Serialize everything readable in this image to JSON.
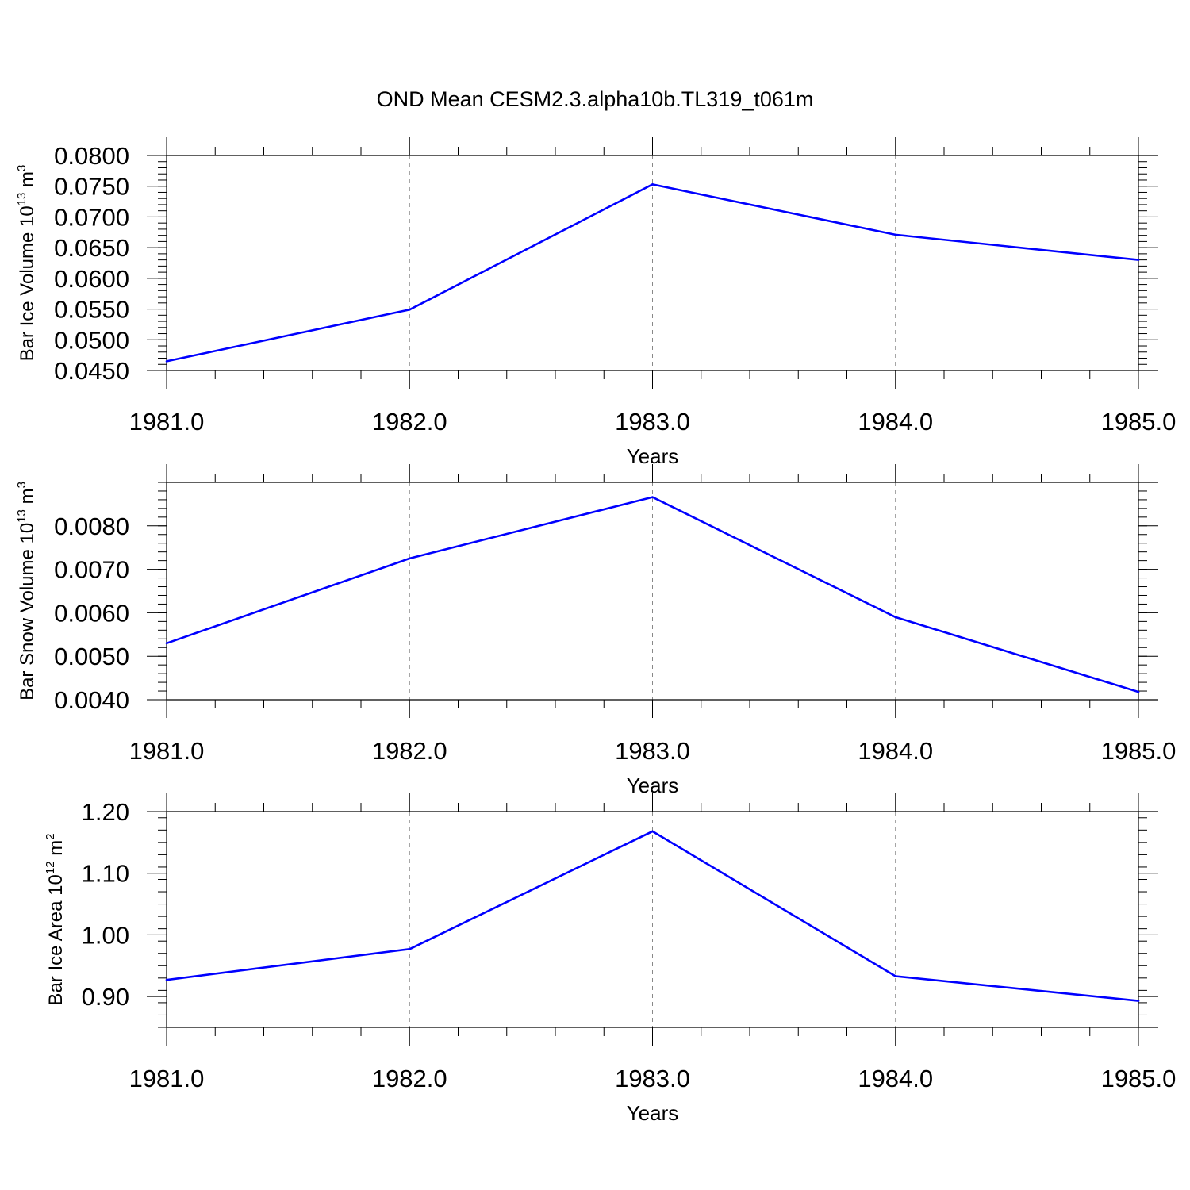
{
  "title": "OND Mean CESM2.3.alpha10b.TL319_t061m",
  "line_color": "#0000ff",
  "chart_data": [
    {
      "type": "line",
      "ylabel": {
        "text": "Bar Ice Volume 10",
        "sup": "13",
        "tail": " m",
        "tail_sup": "3"
      },
      "xlabel": "Years",
      "x": [
        1981,
        1982,
        1983,
        1984,
        1985
      ],
      "xlim": [
        1981,
        1985
      ],
      "x_ticks": [
        "1981.0",
        "1982.0",
        "1983.0",
        "1984.0",
        "1985.0"
      ],
      "ylim": [
        0.045,
        0.08
      ],
      "y_ticks": [
        {
          "v": 0.045,
          "label": "0.0450"
        },
        {
          "v": 0.05,
          "label": "0.0500"
        },
        {
          "v": 0.055,
          "label": "0.0550"
        },
        {
          "v": 0.06,
          "label": "0.0600"
        },
        {
          "v": 0.065,
          "label": "0.0650"
        },
        {
          "v": 0.07,
          "label": "0.0700"
        },
        {
          "v": 0.075,
          "label": "0.0750"
        },
        {
          "v": 0.08,
          "label": "0.0800"
        }
      ],
      "y_minor_step": 0.001,
      "grid_x": true,
      "values": [
        0.0465,
        0.0549,
        0.0753,
        0.0671,
        0.063
      ]
    },
    {
      "type": "line",
      "ylabel": {
        "text": "Bar Snow Volume 10",
        "sup": "13",
        "tail": " m",
        "tail_sup": "3"
      },
      "xlabel": "Years",
      "x": [
        1981,
        1982,
        1983,
        1984,
        1985
      ],
      "xlim": [
        1981,
        1985
      ],
      "x_ticks": [
        "1981.0",
        "1982.0",
        "1983.0",
        "1984.0",
        "1985.0"
      ],
      "ylim": [
        0.004,
        0.009
      ],
      "y_ticks": [
        {
          "v": 0.004,
          "label": "0.0040"
        },
        {
          "v": 0.005,
          "label": "0.0050"
        },
        {
          "v": 0.006,
          "label": "0.0060"
        },
        {
          "v": 0.007,
          "label": "0.0070"
        },
        {
          "v": 0.008,
          "label": "0.0080"
        }
      ],
      "y_minor_step": 0.0002,
      "grid_x": true,
      "values": [
        0.0053,
        0.00725,
        0.00866,
        0.0059,
        0.00418
      ]
    },
    {
      "type": "line",
      "ylabel": {
        "text": "Bar Ice Area 10",
        "sup": "12",
        "tail": " m",
        "tail_sup": "2"
      },
      "xlabel": "Years",
      "x": [
        1981,
        1982,
        1983,
        1984,
        1985
      ],
      "xlim": [
        1981,
        1985
      ],
      "x_ticks": [
        "1981.0",
        "1982.0",
        "1983.0",
        "1984.0",
        "1985.0"
      ],
      "ylim": [
        0.85,
        1.2
      ],
      "y_ticks": [
        {
          "v": 0.9,
          "label": "0.90"
        },
        {
          "v": 1.0,
          "label": "1.00"
        },
        {
          "v": 1.1,
          "label": "1.10"
        },
        {
          "v": 1.2,
          "label": "1.20"
        }
      ],
      "y_minor_step": 0.02,
      "grid_x": true,
      "values": [
        0.927,
        0.977,
        1.168,
        0.933,
        0.893
      ]
    }
  ]
}
